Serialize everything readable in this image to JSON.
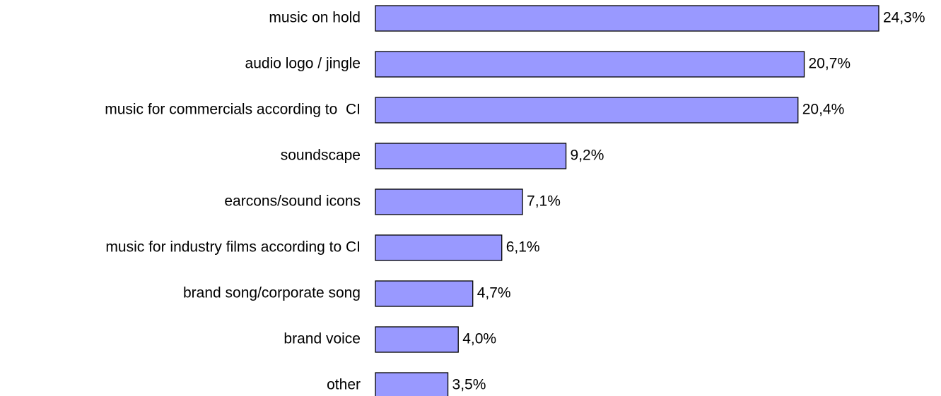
{
  "chart_data": {
    "type": "bar",
    "orientation": "horizontal",
    "categories": [
      "music on hold",
      "audio logo / jingle",
      "music for commercials according to  CI",
      "soundscape",
      "earcons/sound icons",
      "music for industry films according to CI",
      "brand song/corporate song",
      "brand voice",
      "other"
    ],
    "values": [
      24.3,
      20.7,
      20.4,
      9.2,
      7.1,
      6.1,
      4.7,
      4.0,
      3.5
    ],
    "value_labels": [
      "24,3%",
      "20,7%",
      "20,4%",
      "9,2%",
      "7,1%",
      "6,1%",
      "4,7%",
      "4,0%",
      "3,5%"
    ],
    "color": "#9999ff"
  }
}
